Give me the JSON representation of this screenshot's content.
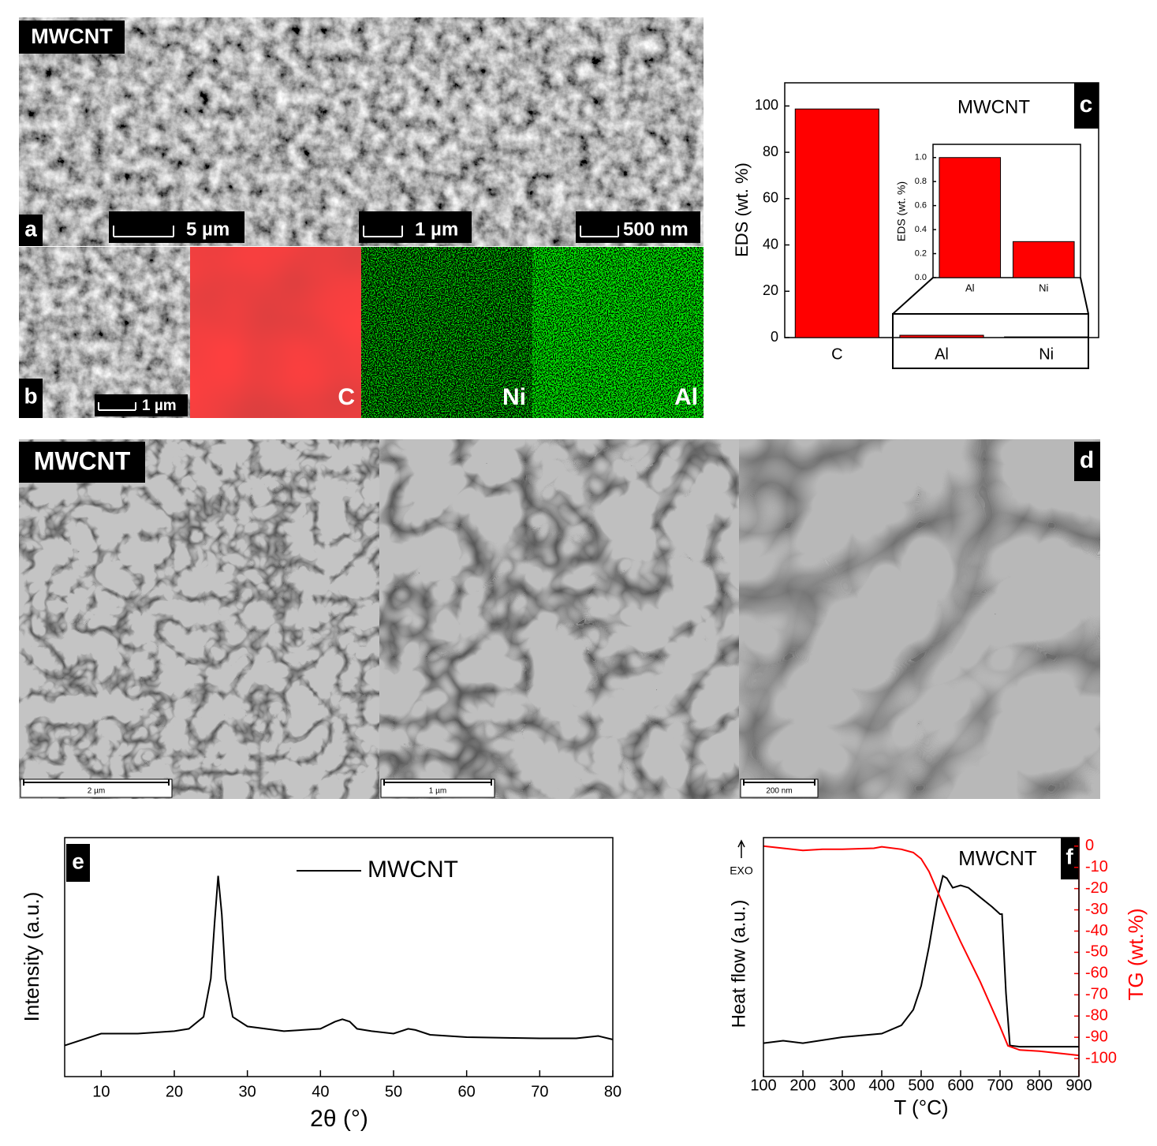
{
  "sem": {
    "label": "MWCNT",
    "panel": "a",
    "scale_bars": [
      "5 µm",
      "1 µm",
      "500 nm"
    ]
  },
  "eds_map": {
    "panel": "b",
    "scale_bar": "1 µm",
    "elements": [
      "C",
      "Ni",
      "Al"
    ]
  },
  "tem": {
    "label": "MWCNT",
    "panel": "d",
    "scale_bars": [
      "2 µm",
      "1 µm",
      "200 nm"
    ]
  },
  "chart_data": [
    {
      "type": "bar",
      "panel": "c",
      "annotation": "MWCNT",
      "ylabel": "EDS (wt. %)",
      "categories": [
        "C",
        "Al",
        "Ni"
      ],
      "values": [
        98.7,
        1.0,
        0.3
      ],
      "color": "#ff0000",
      "ylim": [
        0,
        110
      ],
      "yticks": [
        0,
        20,
        40,
        60,
        80,
        100
      ],
      "inset": {
        "type": "bar",
        "ylabel": "EDS (wt. %)",
        "categories": [
          "Al",
          "Ni"
        ],
        "values": [
          1.0,
          0.3
        ],
        "color": "#ff0000",
        "ylim": [
          0,
          1.11
        ],
        "yticks": [
          {
            "value": 0,
            "label": "0.0"
          },
          {
            "value": 0.2,
            "label": "0.2"
          },
          {
            "value": 0.4,
            "label": "0.4"
          },
          {
            "value": 0.6,
            "label": "0.6"
          },
          {
            "value": 0.8,
            "label": "0.8"
          },
          {
            "value": 1.0,
            "label": "1.0"
          }
        ]
      }
    },
    {
      "type": "line",
      "panel": "e",
      "xlabel": "2θ (°)",
      "ylabel": "Intensity (a.u.)",
      "x": [
        5,
        10,
        15,
        20,
        22,
        24,
        25,
        25.5,
        26,
        26.5,
        27,
        28,
        30,
        35,
        40,
        42,
        43,
        44,
        45,
        47,
        50,
        52,
        53,
        55,
        60,
        70,
        75,
        78,
        80
      ],
      "series": [
        {
          "name": "MWCNT",
          "color": "#000000",
          "values": [
            13,
            18,
            18,
            19,
            20,
            25,
            41,
            64,
            84,
            68,
            41,
            25,
            21,
            19,
            20,
            23,
            24,
            23,
            20,
            19,
            18,
            20,
            19.5,
            17.5,
            16.5,
            16,
            16,
            17,
            15.5
          ]
        }
      ],
      "xlim": [
        5,
        80
      ],
      "xticks": [
        10,
        20,
        30,
        40,
        50,
        60,
        70,
        80
      ],
      "ylim": [
        0,
        100
      ]
    },
    {
      "type": "line",
      "panel": "f",
      "annotation": "MWCNT",
      "exo_label": "EXO",
      "xlabel": "T (°C)",
      "ylabel": "Heat flow (a.u.)",
      "y2label": "TG (wt.%)",
      "series": [
        {
          "color": "#000000",
          "x": [
            100,
            150,
            200,
            300,
            400,
            450,
            480,
            500,
            520,
            540,
            555,
            565,
            580,
            600,
            620,
            650,
            680,
            700,
            705,
            715,
            725,
            750,
            800,
            900
          ],
          "values": [
            14,
            15,
            14,
            16.5,
            18,
            21.5,
            28,
            38,
            54.5,
            74,
            84,
            83,
            79,
            80,
            79,
            75,
            71,
            68,
            68,
            35,
            13,
            12.5,
            12.5,
            12.5
          ]
        },
        {
          "color": "#ff0000",
          "axis": "y2",
          "x": [
            100,
            150,
            200,
            250,
            300,
            380,
            400,
            450,
            480,
            500,
            520,
            550,
            600,
            650,
            700,
            720,
            750,
            800,
            900
          ],
          "values": [
            0,
            -1,
            -2,
            -1.5,
            -1.5,
            -1,
            -0.3,
            -1.5,
            -3,
            -6,
            -12,
            -25,
            -45,
            -64,
            -85,
            -94,
            -96,
            -96.5,
            -98.5
          ]
        }
      ],
      "xlim": [
        100,
        900
      ],
      "xticks": [
        100,
        200,
        300,
        400,
        500,
        600,
        700,
        800,
        900
      ],
      "ylim": [
        0,
        100
      ],
      "y2lim": [
        -108.5,
        4
      ],
      "y2ticks": [
        0,
        -10,
        -20,
        -30,
        -40,
        -50,
        -60,
        -70,
        -80,
        -90,
        -100
      ]
    }
  ]
}
